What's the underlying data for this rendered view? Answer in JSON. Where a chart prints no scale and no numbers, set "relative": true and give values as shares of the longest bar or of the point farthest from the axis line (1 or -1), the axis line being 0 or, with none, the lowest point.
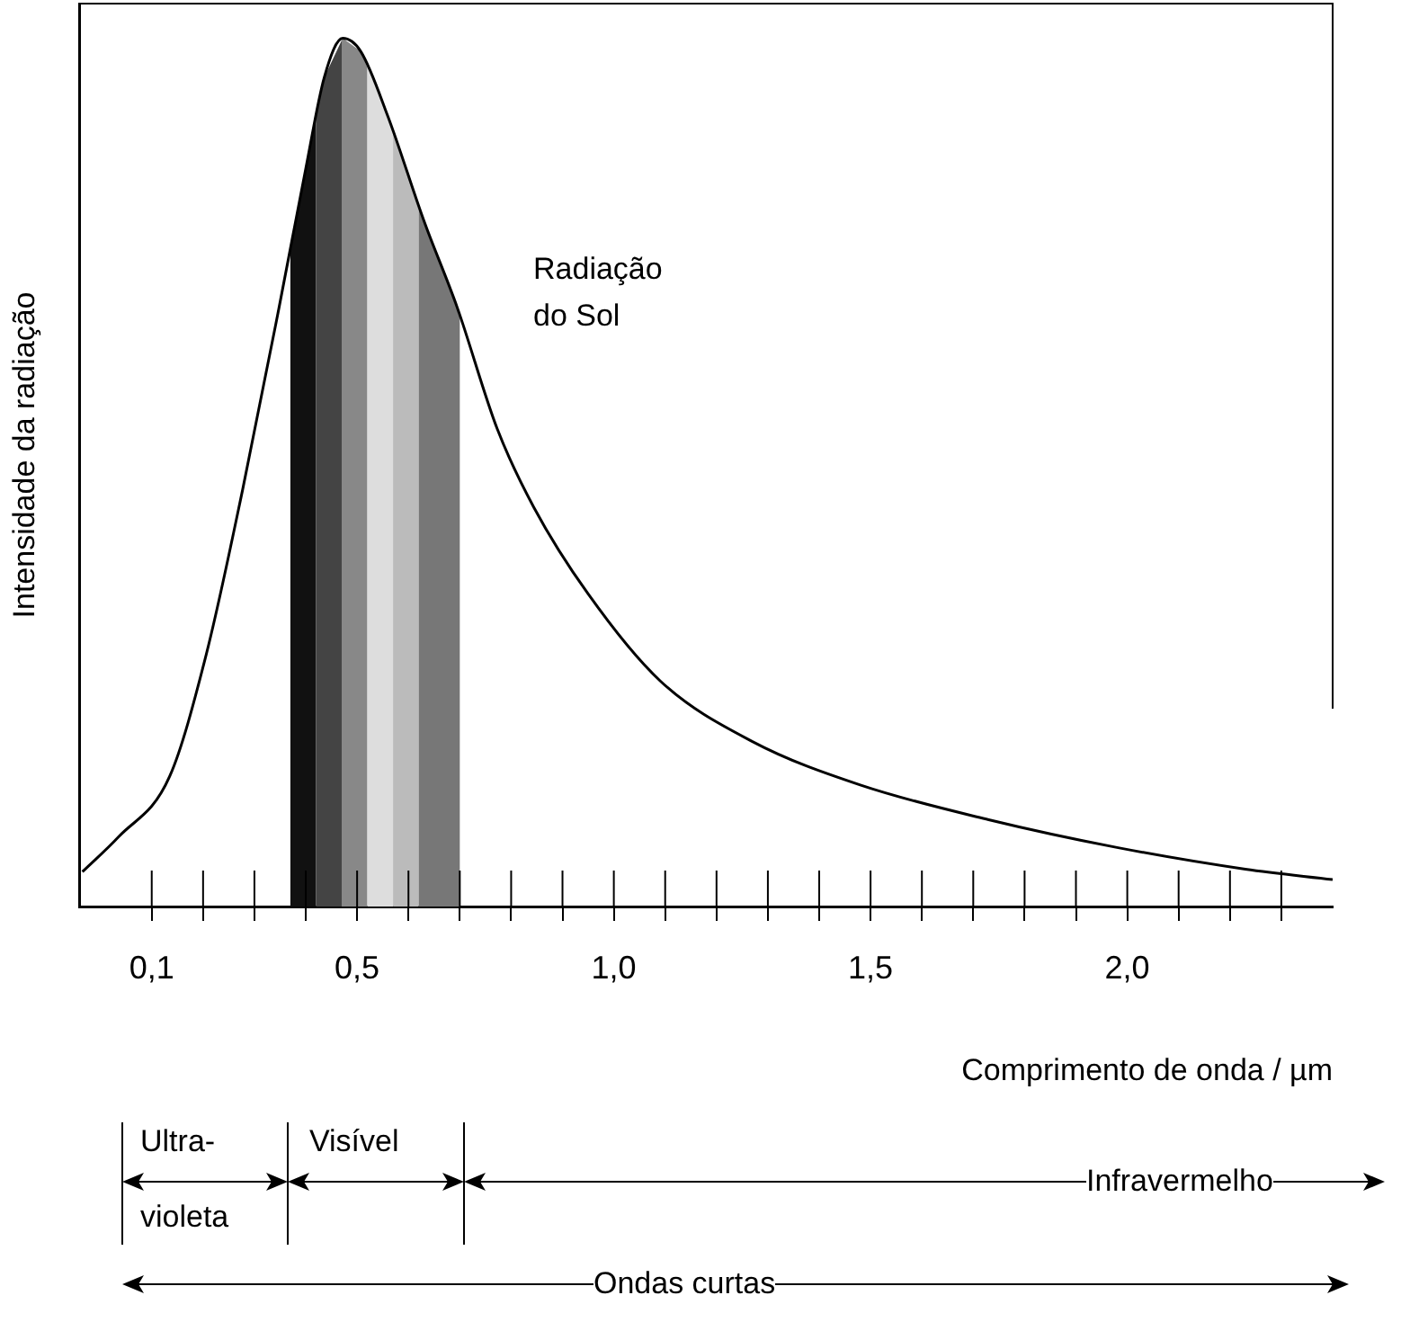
{
  "chart_data": {
    "type": "line",
    "xlabel": "Comprimento de onda / µm",
    "ylabel": "Intensidade da radiação",
    "relative": true,
    "xlim": [
      -0.04,
      2.4
    ],
    "xticks": [
      {
        "value": 0.1,
        "label": "0,1"
      },
      {
        "value": 0.2,
        "label": null
      },
      {
        "value": 0.3,
        "label": null
      },
      {
        "value": 0.4,
        "label": null
      },
      {
        "value": 0.5,
        "label": "0,5"
      },
      {
        "value": 0.6,
        "label": null
      },
      {
        "value": 0.7,
        "label": null
      },
      {
        "value": 0.8,
        "label": null
      },
      {
        "value": 0.9,
        "label": null
      },
      {
        "value": 1.0,
        "label": "1,0"
      },
      {
        "value": 1.1,
        "label": null
      },
      {
        "value": 1.2,
        "label": null
      },
      {
        "value": 1.3,
        "label": null
      },
      {
        "value": 1.4,
        "label": null
      },
      {
        "value": 1.5,
        "label": "1,5"
      },
      {
        "value": 1.6,
        "label": null
      },
      {
        "value": 1.7,
        "label": null
      },
      {
        "value": 1.8,
        "label": null
      },
      {
        "value": 1.9,
        "label": null
      },
      {
        "value": 2.0,
        "label": "2,0"
      },
      {
        "value": 2.1,
        "label": null
      },
      {
        "value": 2.2,
        "label": null
      },
      {
        "value": 2.3,
        "label": null
      }
    ],
    "series": [
      {
        "name": "Radiação do Sol",
        "color": "#000000",
        "x": [
          -0.035,
          0.035,
          0.135,
          0.206,
          0.277,
          0.348,
          0.4,
          0.436,
          0.472,
          0.507,
          0.56,
          0.63,
          0.695,
          0.773,
          0.844,
          0.95,
          1.09,
          1.27,
          1.48,
          1.73,
          1.98,
          2.23,
          2.4
        ],
        "values": [
          0.04,
          0.08,
          0.15,
          0.29,
          0.48,
          0.69,
          0.85,
          0.955,
          1.0,
          0.985,
          0.91,
          0.79,
          0.69,
          0.55,
          0.46,
          0.36,
          0.26,
          0.19,
          0.14,
          0.1,
          0.068,
          0.043,
          0.031
        ]
      }
    ],
    "bands": [
      {
        "axis": "x",
        "from": 0.37,
        "to": 0.42,
        "color": "#111111"
      },
      {
        "axis": "x",
        "from": 0.42,
        "to": 0.47,
        "color": "#444444"
      },
      {
        "axis": "x",
        "from": 0.47,
        "to": 0.52,
        "color": "#888888"
      },
      {
        "axis": "x",
        "from": 0.52,
        "to": 0.57,
        "color": "#dddddd"
      },
      {
        "axis": "x",
        "from": 0.57,
        "to": 0.62,
        "color": "#bbbbbb"
      },
      {
        "axis": "x",
        "from": 0.62,
        "to": 0.7,
        "color": "#777777"
      }
    ],
    "annotations": [
      "Ultra-violeta",
      "Visível",
      "Infravermelho",
      "Ondas curtas"
    ],
    "grid": false,
    "legend": false,
    "marker": "none",
    "line_style": "solid"
  }
}
